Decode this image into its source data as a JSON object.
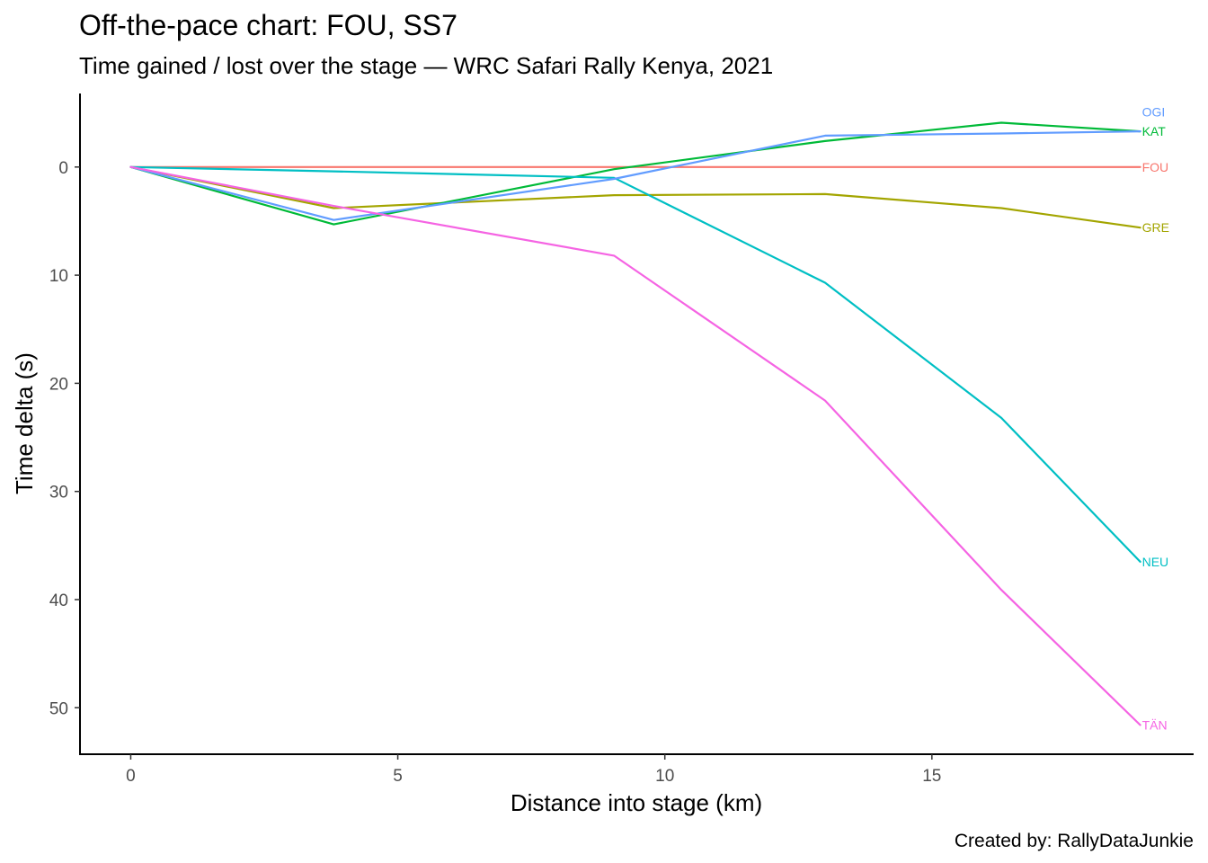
{
  "chart_data": {
    "type": "line",
    "title": "Off-the-pace chart: FOU, SS7",
    "subtitle": "Time gained / lost over the stage — WRC Safari Rally Kenya, 2021",
    "xlabel": "Distance into stage (km)",
    "ylabel": "Time delta (s)",
    "caption": "Created by: RallyDataJunkie",
    "xlim": [
      -0.95,
      19.9
    ],
    "ylim": [
      54.3,
      -6.8
    ],
    "y_reversed": true,
    "x_ticks": [
      0,
      5,
      10,
      15
    ],
    "y_ticks": [
      0,
      10,
      20,
      30,
      40,
      50
    ],
    "grid": false,
    "legend": "none",
    "label_placement": "end-of-line",
    "series": [
      {
        "name": "FOU",
        "color": "#F8766D",
        "x": [
          0,
          3.8,
          9.05,
          13.0,
          16.3,
          18.9
        ],
        "y": [
          0,
          0,
          0,
          0,
          0,
          0
        ]
      },
      {
        "name": "GRE",
        "color": "#A3A500",
        "x": [
          0,
          3.8,
          9.05,
          13.0,
          16.3,
          18.9
        ],
        "y": [
          0,
          3.8,
          2.6,
          2.5,
          3.8,
          5.6
        ]
      },
      {
        "name": "KAT",
        "color": "#00BA38",
        "x": [
          0,
          3.8,
          9.05,
          13.0,
          16.3,
          18.9
        ],
        "y": [
          0,
          5.3,
          0.2,
          -2.4,
          -4.1,
          -3.3
        ]
      },
      {
        "name": "NEU",
        "color": "#00BFC4",
        "x": [
          0,
          3.8,
          9.05,
          13.0,
          16.3,
          18.9
        ],
        "y": [
          0,
          0.4,
          1.0,
          10.7,
          23.2,
          36.5
        ]
      },
      {
        "name": "OGI",
        "color": "#619CFF",
        "x": [
          0,
          3.8,
          9.05,
          13.0,
          16.3,
          18.9
        ],
        "y": [
          0,
          4.9,
          1.1,
          -2.9,
          -3.1,
          -3.3
        ]
      },
      {
        "name": "TÄN",
        "color": "#F564E3",
        "x": [
          0,
          3.8,
          9.05,
          13.0,
          16.3,
          18.9
        ],
        "y": [
          0,
          3.6,
          8.2,
          21.6,
          39.1,
          51.6
        ]
      }
    ],
    "end_labels": [
      {
        "text": "OGI",
        "color": "#619CFF",
        "y": -5.1
      },
      {
        "text": "KAT",
        "color": "#00BA38",
        "y": -3.3
      },
      {
        "text": "FOU",
        "color": "#F8766D",
        "y": 0
      },
      {
        "text": "GRE",
        "color": "#A3A500",
        "y": 5.6
      },
      {
        "text": "NEU",
        "color": "#00BFC4",
        "y": 36.5
      },
      {
        "text": "TÄN",
        "color": "#F564E3",
        "y": 51.6
      }
    ]
  }
}
